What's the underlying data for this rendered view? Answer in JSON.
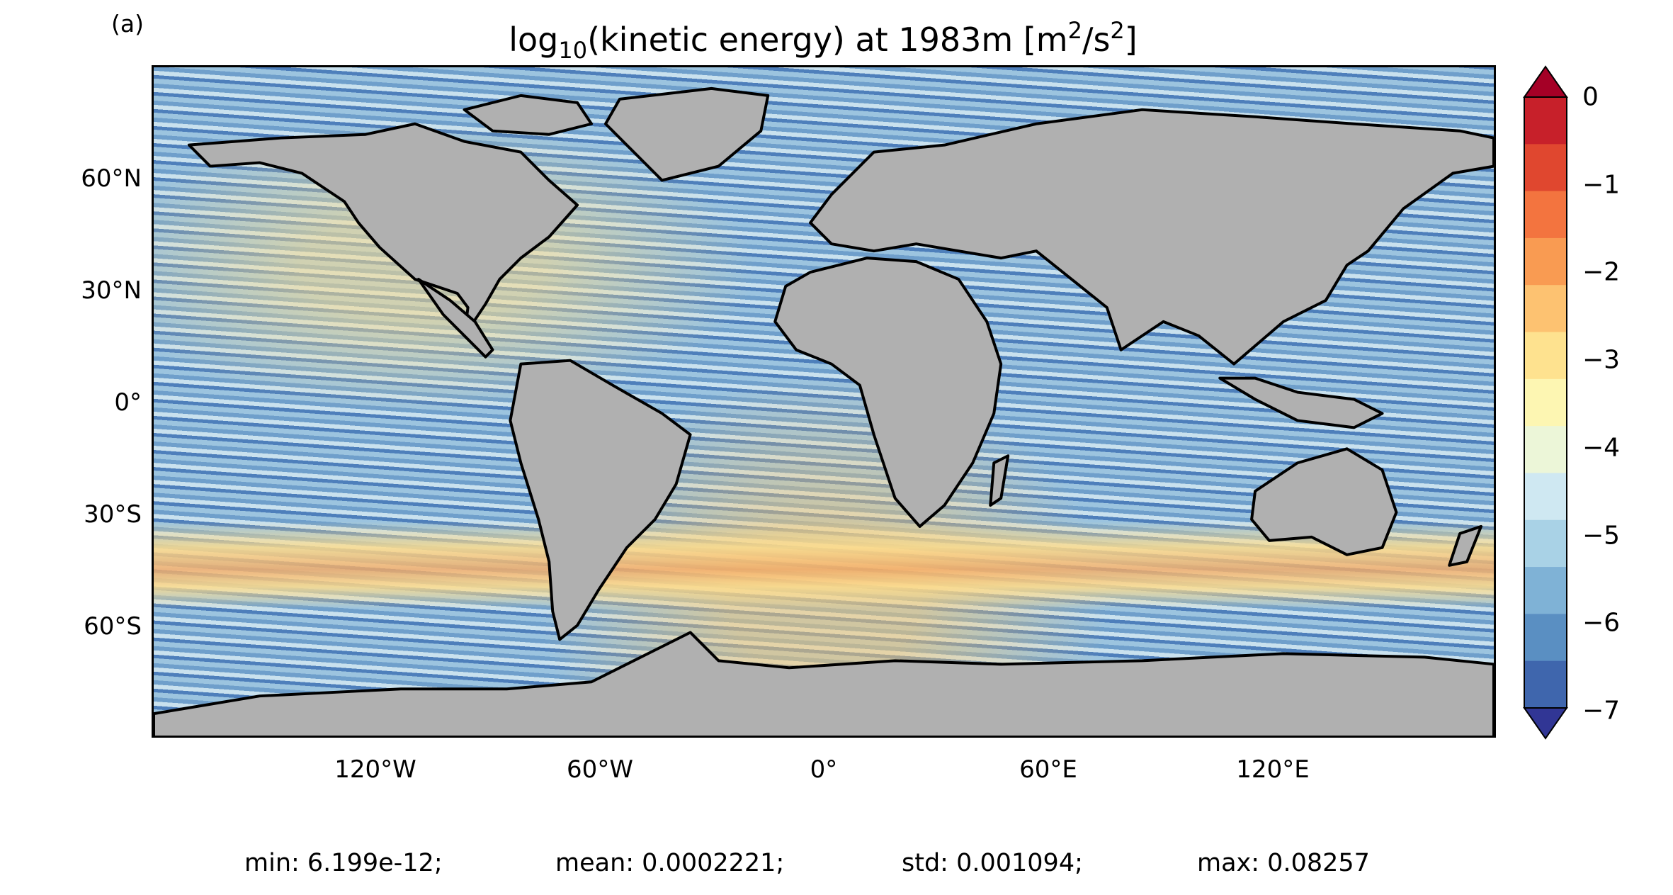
{
  "panel_label": "(a)",
  "title": {
    "prefix": "log",
    "sub": "10",
    "middle": "(kinetic energy) at 1983m [m",
    "sup1": "2",
    "mid2": "/s",
    "sup2": "2",
    "suffix": "]"
  },
  "lat_ticks": [
    "60°N",
    "30°N",
    "0°",
    "30°S",
    "60°S"
  ],
  "lon_ticks": [
    "120°W",
    "60°W",
    "0°",
    "60°E",
    "120°E"
  ],
  "colorbar": {
    "ticks": [
      "0",
      "−1",
      "−2",
      "−3",
      "−4",
      "−5",
      "−6",
      "−7"
    ],
    "colors": [
      "#a50026",
      "#c7202a",
      "#e0472f",
      "#f3743f",
      "#f99b52",
      "#fdc271",
      "#fee28f",
      "#fdf6b2",
      "#ecf6d8",
      "#cfe8f2",
      "#a9d2e6",
      "#7fb2d6",
      "#5a8fc2",
      "#3f66ad",
      "#313695"
    ]
  },
  "stats": {
    "min": "min: 6.199e-12;",
    "mean": "mean: 0.0002221;",
    "std": "std: 0.001094;",
    "max": "max: 0.08257"
  },
  "land_color": "#b0b0b0"
}
